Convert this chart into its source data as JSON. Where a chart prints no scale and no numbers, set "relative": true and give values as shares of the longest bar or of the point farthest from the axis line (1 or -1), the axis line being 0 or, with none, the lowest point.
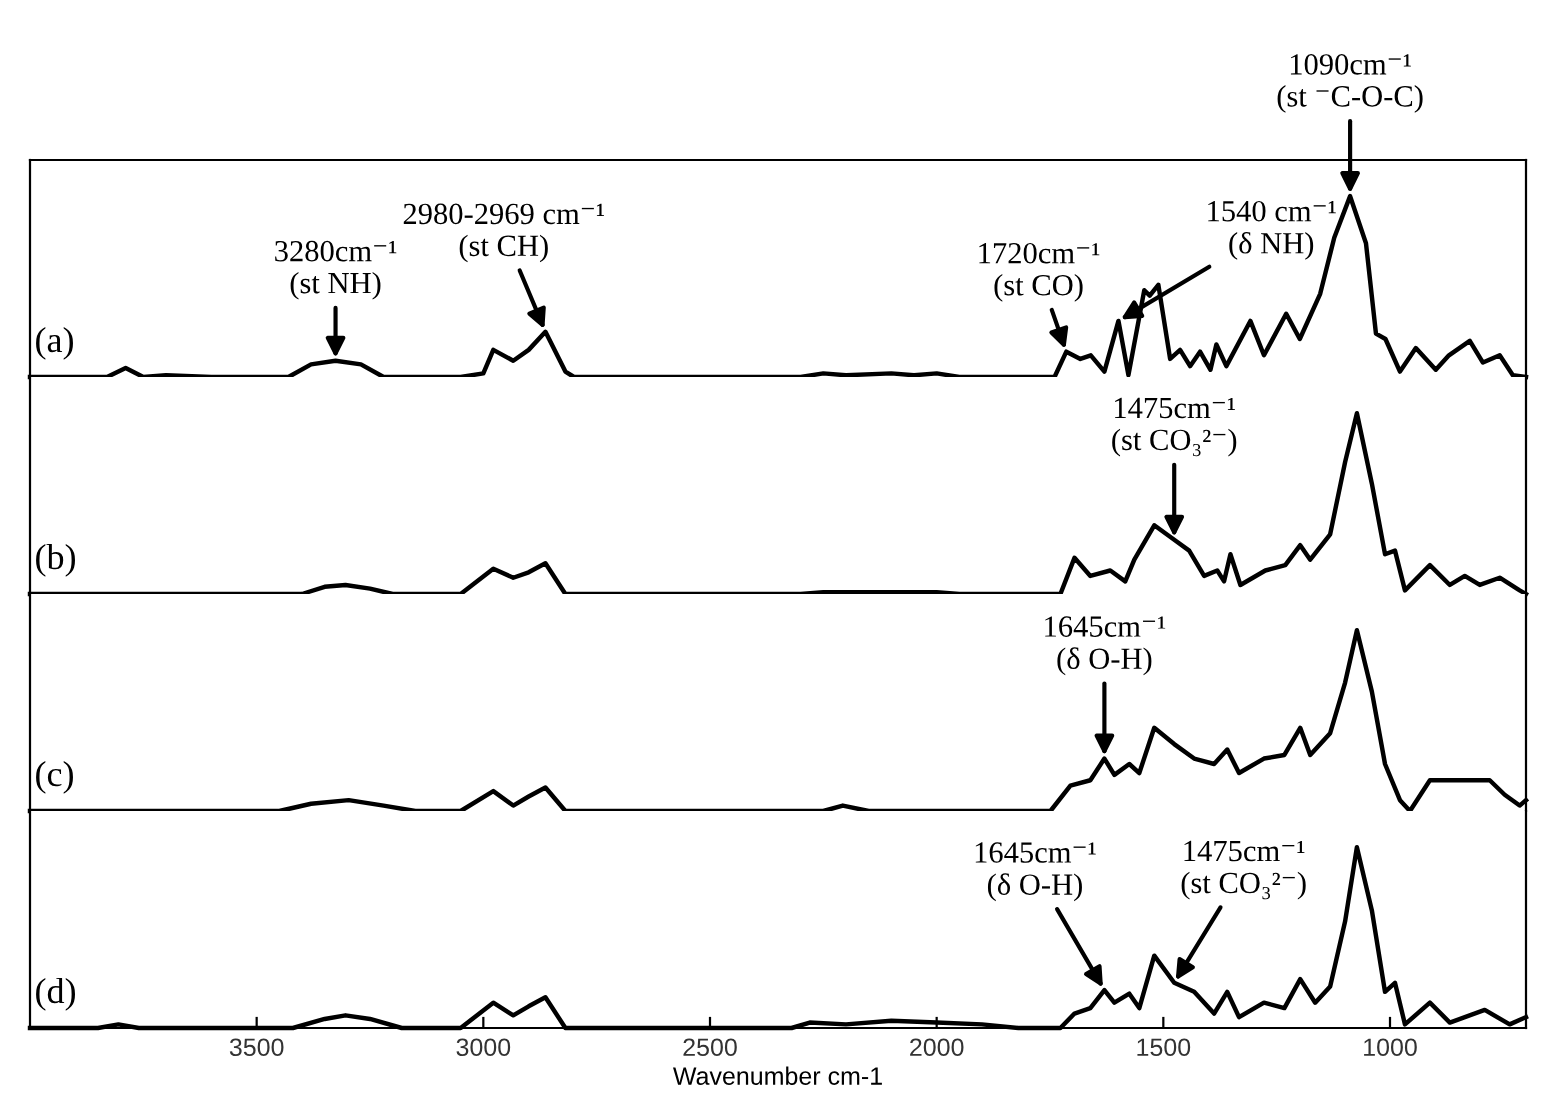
{
  "chart_data": [
    {
      "type": "line",
      "relative": true,
      "xlim": [
        4000,
        700
      ],
      "tick_labels": false,
      "line_style": "solid",
      "marker": "none",
      "series": [
        {
          "color": "#000000",
          "x": [
            4000,
            3830,
            3789,
            3750,
            3700,
            3600,
            3430,
            3380,
            3326,
            3270,
            3220,
            3050,
            3000,
            2978,
            2934,
            2900,
            2863,
            2819,
            2800,
            2300,
            2250,
            2200,
            2100,
            2050,
            2000,
            1950,
            1740,
            1714,
            1683,
            1660,
            1630,
            1599,
            1577,
            1542,
            1530,
            1511,
            1485,
            1463,
            1441,
            1419,
            1396,
            1383,
            1361,
            1308,
            1278,
            1229,
            1199,
            1154,
            1123,
            1088,
            1053,
            1031,
            1010,
            978,
            943,
            899,
            870,
            824,
            795,
            758,
            729,
            700
          ],
          "values": [
            0,
            0,
            0.05,
            0,
            0.01,
            0,
            0,
            0.07,
            0.09,
            0.07,
            0,
            0,
            0.02,
            0.15,
            0.09,
            0.15,
            0.25,
            0.03,
            0,
            0,
            0.02,
            0.01,
            0.02,
            0.01,
            0.02,
            0,
            0,
            0.14,
            0.1,
            0.12,
            0.03,
            0.31,
            0.01,
            0.48,
            0.45,
            0.51,
            0.1,
            0.15,
            0.06,
            0.14,
            0.04,
            0.18,
            0.06,
            0.31,
            0.12,
            0.35,
            0.21,
            0.46,
            0.77,
            1,
            0.74,
            0.24,
            0.21,
            0.03,
            0.16,
            0.04,
            0.12,
            0.2,
            0.08,
            0.12,
            0.01,
            0
          ]
        }
      ],
      "annotations": [
        "(a)",
        {
          "text": "3280cm⁻¹\n(st NH)",
          "x": 3326,
          "y": 0.09
        },
        {
          "text": "2980-2969 cm⁻¹\n(st CH)",
          "x": 2863,
          "y": 0.25
        },
        {
          "text": "1720cm⁻¹\n(st CO)",
          "x": 1714,
          "y": 0.14
        },
        {
          "text": "1540 cm⁻¹\n(δ NH)",
          "x": 1599,
          "y": 0.31
        },
        {
          "text": "1090cm⁻¹\n(st ⁻C-O-C)",
          "x": 1088,
          "y": 1
        }
      ]
    },
    {
      "type": "line",
      "relative": true,
      "xlim": [
        4000,
        700
      ],
      "tick_labels": false,
      "line_style": "solid",
      "marker": "none",
      "series": [
        {
          "color": "#000000",
          "x": [
            4000,
            3400,
            3350,
            3304,
            3250,
            3200,
            3050,
            2978,
            2934,
            2900,
            2863,
            2819,
            2300,
            2250,
            2150,
            2000,
            1950,
            1727,
            1696,
            1661,
            1617,
            1584,
            1564,
            1520,
            1476,
            1443,
            1410,
            1381,
            1366,
            1352,
            1330,
            1275,
            1231,
            1198,
            1176,
            1132,
            1099,
            1073,
            1040,
            1011,
            989,
            967,
            912,
            868,
            835,
            802,
            758,
            714,
            700
          ],
          "values": [
            0,
            0,
            0.04,
            0.05,
            0.03,
            0,
            0,
            0.14,
            0.09,
            0.12,
            0.17,
            0,
            0,
            0.01,
            0.01,
            0.01,
            0,
            0,
            0.2,
            0.1,
            0.13,
            0.07,
            0.19,
            0.38,
            0.3,
            0.24,
            0.1,
            0.13,
            0.07,
            0.22,
            0.05,
            0.13,
            0.16,
            0.27,
            0.19,
            0.33,
            0.73,
            1,
            0.61,
            0.22,
            0.24,
            0.02,
            0.16,
            0.05,
            0.1,
            0.05,
            0.09,
            0.02,
            0
          ]
        }
      ],
      "annotations": [
        "(b)",
        {
          "text": "1475cm⁻¹\n(st CO₃²⁻)",
          "x": 1476,
          "y": 0.3
        }
      ]
    },
    {
      "type": "line",
      "relative": true,
      "xlim": [
        4000,
        700
      ],
      "tick_labels": false,
      "line_style": "solid",
      "marker": "none",
      "series": [
        {
          "color": "#000000",
          "x": [
            4000,
            3450,
            3380,
            3297,
            3220,
            3150,
            3050,
            2978,
            2934,
            2900,
            2863,
            2819,
            2250,
            2207,
            2150,
            1749,
            1705,
            1661,
            1630,
            1608,
            1575,
            1553,
            1520,
            1476,
            1432,
            1388,
            1359,
            1333,
            1278,
            1233,
            1198,
            1176,
            1132,
            1099,
            1073,
            1040,
            1011,
            978,
            956,
            912,
            846,
            780,
            747,
            714,
            700
          ],
          "values": [
            0,
            0,
            0.04,
            0.06,
            0.03,
            0,
            0,
            0.11,
            0.03,
            0.08,
            0.13,
            0,
            0,
            0.03,
            0,
            0,
            0.14,
            0.17,
            0.29,
            0.2,
            0.26,
            0.21,
            0.46,
            0.37,
            0.29,
            0.26,
            0.34,
            0.21,
            0.29,
            0.31,
            0.46,
            0.31,
            0.43,
            0.71,
            1,
            0.66,
            0.26,
            0.06,
            0,
            0.17,
            0.17,
            0.17,
            0.09,
            0.03,
            0.06
          ]
        }
      ],
      "annotations": [
        "(c)",
        {
          "text": "1645cm⁻¹\n(δ O-H)",
          "x": 1630,
          "y": 0.29
        }
      ]
    },
    {
      "type": "line",
      "relative": true,
      "xlim": [
        4000,
        700
      ],
      "xticks": [
        3500,
        3000,
        2500,
        2000,
        1500,
        1000
      ],
      "tick_labels": "x",
      "xlabel": "Wavenumber cm-1",
      "line_style": "solid",
      "marker": "none",
      "series": [
        {
          "color": "#000000",
          "x": [
            4000,
            3850,
            3805,
            3760,
            3420,
            3350,
            3304,
            3250,
            3180,
            3050,
            2978,
            2934,
            2900,
            2863,
            2819,
            2320,
            2280,
            2200,
            2100,
            2000,
            1900,
            1820,
            1727,
            1696,
            1661,
            1630,
            1608,
            1575,
            1553,
            1520,
            1476,
            1432,
            1388,
            1359,
            1333,
            1278,
            1233,
            1198,
            1165,
            1132,
            1099,
            1073,
            1040,
            1011,
            989,
            967,
            912,
            868,
            791,
            736,
            700
          ],
          "values": [
            0,
            0,
            0.02,
            0,
            0,
            0.05,
            0.07,
            0.05,
            0,
            0,
            0.14,
            0.07,
            0.12,
            0.17,
            0,
            0,
            0.03,
            0.02,
            0.04,
            0.03,
            0.02,
            0,
            0,
            0.08,
            0.11,
            0.21,
            0.14,
            0.19,
            0.11,
            0.4,
            0.25,
            0.2,
            0.08,
            0.2,
            0.06,
            0.14,
            0.11,
            0.27,
            0.14,
            0.23,
            0.59,
            1,
            0.65,
            0.2,
            0.25,
            0.02,
            0.14,
            0.03,
            0.1,
            0.02,
            0.06
          ]
        }
      ],
      "annotations": [
        "(d)",
        {
          "text": "1645cm⁻¹\n(δ O-H)",
          "x": 1630,
          "y": 0.21
        },
        {
          "text": "1475cm⁻¹\n(st CO₃²⁻)",
          "x": 1476,
          "y": 0.25
        }
      ]
    }
  ]
}
